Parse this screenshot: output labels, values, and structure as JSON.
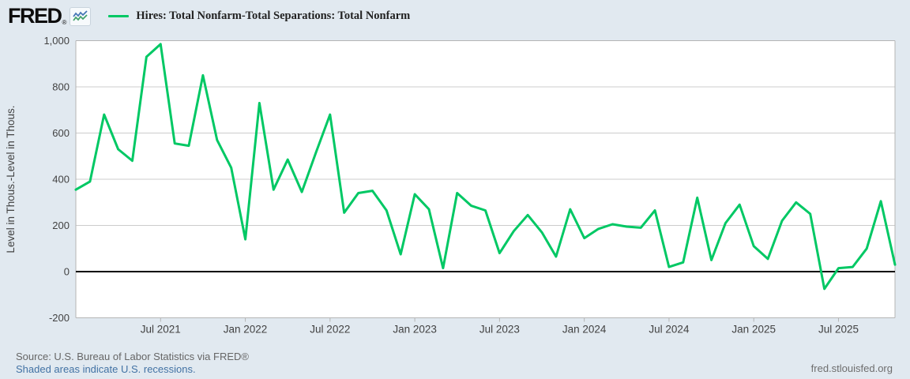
{
  "header": {
    "logo_text": "FRED",
    "logo_registered": "®",
    "legend_label": "Hires: Total Nonfarm-Total Separations: Total Nonfarm"
  },
  "footer": {
    "source_line": "Source: U.S. Bureau of Labor Statistics via FRED®",
    "recession_note": "Shaded areas indicate U.S. recessions.",
    "site_link": "fred.stlouisfed.org"
  },
  "colors": {
    "background": "#e1e9f0",
    "plot_bg": "#ffffff",
    "line": "#00c864",
    "grid": "#cccccc",
    "plot_border": "#b5b5b5",
    "zero_line": "#000000",
    "axis_text": "#424242",
    "link": "#4272a4",
    "logo_icon_blue": "#4576b5",
    "logo_icon_green": "#44a26c"
  },
  "icons": {
    "logo_chart_icon": "fred-squiggle-lines"
  },
  "chart_data": {
    "type": "line",
    "title": "Hires: Total Nonfarm-Total Separations: Total Nonfarm",
    "xlabel": "",
    "ylabel": "Level in Thous.-Level in Thous.",
    "units": "Thousands",
    "frequency": "Monthly",
    "ylim": [
      -200,
      1000
    ],
    "grid": true,
    "legend_position": "top-left",
    "y_ticks": [
      -200,
      0,
      200,
      400,
      600,
      800,
      1000
    ],
    "y_tick_labels": [
      "-200",
      "0",
      "200",
      "400",
      "600",
      "800",
      "1,000"
    ],
    "x_tick_labels": [
      "Jul 2021",
      "Jan 2022",
      "Jul 2022",
      "Jan 2023",
      "Jul 2023",
      "Jan 2024",
      "Jul 2024",
      "Jan 2025",
      "Jul 2025"
    ],
    "x_tick_month_indices": [
      6,
      12,
      18,
      24,
      30,
      36,
      42,
      48,
      54
    ],
    "x": [
      "2021-01",
      "2021-02",
      "2021-03",
      "2021-04",
      "2021-05",
      "2021-06",
      "2021-07",
      "2021-08",
      "2021-09",
      "2021-10",
      "2021-11",
      "2021-12",
      "2022-01",
      "2022-02",
      "2022-03",
      "2022-04",
      "2022-05",
      "2022-06",
      "2022-07",
      "2022-08",
      "2022-09",
      "2022-10",
      "2022-11",
      "2022-12",
      "2023-01",
      "2023-02",
      "2023-03",
      "2023-04",
      "2023-05",
      "2023-06",
      "2023-07",
      "2023-08",
      "2023-09",
      "2023-10",
      "2023-11",
      "2023-12",
      "2024-01",
      "2024-02",
      "2024-03",
      "2024-04",
      "2024-05",
      "2024-06",
      "2024-07",
      "2024-08",
      "2024-09",
      "2024-10",
      "2024-11",
      "2024-12",
      "2025-01",
      "2025-02",
      "2025-03",
      "2025-04",
      "2025-05",
      "2025-06",
      "2025-07",
      "2025-08",
      "2025-09",
      "2025-10",
      "2025-11"
    ],
    "values": [
      355,
      390,
      680,
      530,
      480,
      930,
      985,
      555,
      545,
      850,
      570,
      450,
      140,
      730,
      355,
      485,
      345,
      515,
      680,
      255,
      340,
      350,
      265,
      75,
      335,
      270,
      15,
      340,
      285,
      265,
      80,
      175,
      245,
      170,
      65,
      270,
      145,
      185,
      205,
      195,
      190,
      265,
      20,
      40,
      320,
      50,
      210,
      290,
      110,
      55,
      220,
      300,
      250,
      -75,
      15,
      20,
      100,
      305,
      30
    ]
  }
}
